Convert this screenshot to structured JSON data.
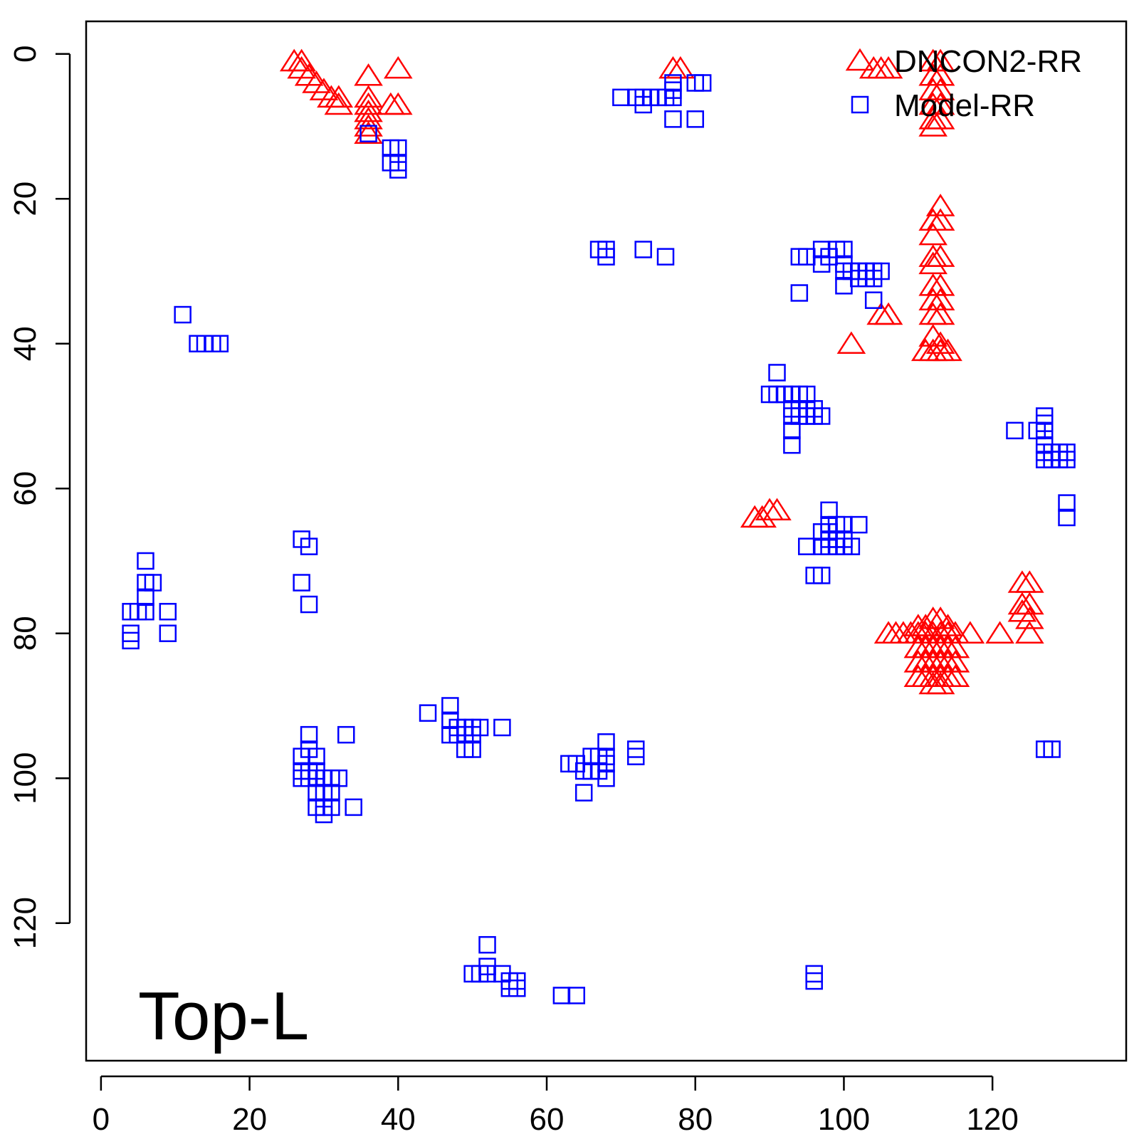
{
  "chart_data": {
    "type": "scatter",
    "title": "",
    "xlabel": "",
    "ylabel": "",
    "xlim": [
      -2,
      138
    ],
    "ylim": [
      139,
      -4.5
    ],
    "x_ticks": [
      0,
      20,
      40,
      60,
      80,
      100,
      120
    ],
    "y_ticks": [
      0,
      20,
      40,
      60,
      80,
      100,
      120
    ],
    "panel_label": "Top-L",
    "grid": false,
    "legend_position": "top-right",
    "series": [
      {
        "name": "DNCON2-RR",
        "marker": "triangle",
        "color": "#ff0000",
        "points": [
          [
            26,
            1
          ],
          [
            27,
            1
          ],
          [
            27,
            2
          ],
          [
            28,
            3
          ],
          [
            29,
            4
          ],
          [
            30,
            5
          ],
          [
            31,
            6
          ],
          [
            32,
            6
          ],
          [
            32,
            7
          ],
          [
            36,
            3
          ],
          [
            36,
            6
          ],
          [
            36,
            7
          ],
          [
            36,
            8
          ],
          [
            36,
            9
          ],
          [
            36,
            10
          ],
          [
            36,
            11
          ],
          [
            39,
            7
          ],
          [
            40,
            7
          ],
          [
            40,
            2
          ],
          [
            77,
            2
          ],
          [
            78,
            2
          ],
          [
            104,
            2
          ],
          [
            105,
            2
          ],
          [
            106,
            2
          ],
          [
            112,
            1
          ],
          [
            113,
            1
          ],
          [
            112,
            3
          ],
          [
            113,
            3
          ],
          [
            112,
            5
          ],
          [
            113,
            5
          ],
          [
            112,
            7
          ],
          [
            113,
            7
          ],
          [
            112,
            9
          ],
          [
            113,
            9
          ],
          [
            112,
            10
          ],
          [
            113,
            21
          ],
          [
            112,
            23
          ],
          [
            113,
            23
          ],
          [
            112,
            25
          ],
          [
            112,
            28
          ],
          [
            113,
            28
          ],
          [
            112,
            29
          ],
          [
            112,
            32
          ],
          [
            113,
            32
          ],
          [
            112,
            34
          ],
          [
            113,
            34
          ],
          [
            112,
            36
          ],
          [
            113,
            36
          ],
          [
            112,
            39
          ],
          [
            113,
            40
          ],
          [
            111,
            41
          ],
          [
            112,
            41
          ],
          [
            113,
            41
          ],
          [
            114,
            41
          ],
          [
            105,
            36
          ],
          [
            106,
            36
          ],
          [
            101,
            40
          ],
          [
            88,
            64
          ],
          [
            89,
            64
          ],
          [
            90,
            63
          ],
          [
            91,
            63
          ],
          [
            124,
            73
          ],
          [
            125,
            73
          ],
          [
            124,
            76
          ],
          [
            125,
            76
          ],
          [
            124,
            77
          ],
          [
            125,
            78
          ],
          [
            125,
            80
          ],
          [
            121,
            80
          ],
          [
            106,
            80
          ],
          [
            107,
            80
          ],
          [
            108,
            80
          ],
          [
            109,
            80
          ],
          [
            110,
            80
          ],
          [
            111,
            80
          ],
          [
            112,
            80
          ],
          [
            113,
            80
          ],
          [
            114,
            80
          ],
          [
            115,
            80
          ],
          [
            117,
            80
          ],
          [
            110,
            79
          ],
          [
            111,
            79
          ],
          [
            112,
            78
          ],
          [
            113,
            78
          ],
          [
            114,
            79
          ],
          [
            110,
            82
          ],
          [
            111,
            82
          ],
          [
            112,
            82
          ],
          [
            113,
            82
          ],
          [
            114,
            82
          ],
          [
            115,
            82
          ],
          [
            110,
            84
          ],
          [
            111,
            84
          ],
          [
            112,
            84
          ],
          [
            113,
            84
          ],
          [
            114,
            84
          ],
          [
            115,
            84
          ],
          [
            110,
            86
          ],
          [
            111,
            86
          ],
          [
            112,
            86
          ],
          [
            113,
            86
          ],
          [
            114,
            86
          ],
          [
            115,
            86
          ],
          [
            112,
            87
          ],
          [
            113,
            87
          ]
        ]
      },
      {
        "name": "Model-RR",
        "marker": "square",
        "color": "#0000ff",
        "points": [
          [
            11,
            36
          ],
          [
            13,
            40
          ],
          [
            14,
            40
          ],
          [
            15,
            40
          ],
          [
            16,
            40
          ],
          [
            4,
            77
          ],
          [
            5,
            77
          ],
          [
            4,
            80
          ],
          [
            4,
            81
          ],
          [
            6,
            70
          ],
          [
            6,
            73
          ],
          [
            7,
            73
          ],
          [
            6,
            75
          ],
          [
            6,
            77
          ],
          [
            9,
            77
          ],
          [
            9,
            80
          ],
          [
            27,
            67
          ],
          [
            28,
            68
          ],
          [
            27,
            73
          ],
          [
            28,
            76
          ],
          [
            28,
            94
          ],
          [
            28,
            96
          ],
          [
            27,
            97
          ],
          [
            29,
            97
          ],
          [
            27,
            99
          ],
          [
            28,
            99
          ],
          [
            29,
            99
          ],
          [
            27,
            100
          ],
          [
            28,
            100
          ],
          [
            29,
            100
          ],
          [
            30,
            100
          ],
          [
            31,
            100
          ],
          [
            32,
            100
          ],
          [
            33,
            94
          ],
          [
            29,
            102
          ],
          [
            30,
            102
          ],
          [
            31,
            102
          ],
          [
            29,
            104
          ],
          [
            30,
            104
          ],
          [
            31,
            104
          ],
          [
            34,
            104
          ],
          [
            30,
            105
          ],
          [
            39,
            13
          ],
          [
            40,
            13
          ],
          [
            39,
            15
          ],
          [
            40,
            15
          ],
          [
            40,
            16
          ],
          [
            36,
            11
          ],
          [
            44,
            91
          ],
          [
            47,
            90
          ],
          [
            47,
            92
          ],
          [
            48,
            93
          ],
          [
            49,
            93
          ],
          [
            50,
            93
          ],
          [
            47,
            94
          ],
          [
            48,
            94
          ],
          [
            49,
            94
          ],
          [
            50,
            94
          ],
          [
            51,
            93
          ],
          [
            54,
            93
          ],
          [
            49,
            96
          ],
          [
            50,
            96
          ],
          [
            63,
            98
          ],
          [
            64,
            98
          ],
          [
            65,
            99
          ],
          [
            66,
            99
          ],
          [
            67,
            99
          ],
          [
            66,
            97
          ],
          [
            67,
            97
          ],
          [
            68,
            97
          ],
          [
            68,
            98
          ],
          [
            68,
            95
          ],
          [
            65,
            102
          ],
          [
            68,
            100
          ],
          [
            72,
            96
          ],
          [
            72,
            97
          ],
          [
            52,
            123
          ],
          [
            50,
            127
          ],
          [
            51,
            127
          ],
          [
            52,
            126
          ],
          [
            52,
            127
          ],
          [
            54,
            127
          ],
          [
            55,
            128
          ],
          [
            56,
            128
          ],
          [
            55,
            129
          ],
          [
            56,
            129
          ],
          [
            62,
            130
          ],
          [
            64,
            130
          ],
          [
            67,
            27
          ],
          [
            68,
            27
          ],
          [
            68,
            28
          ],
          [
            73,
            27
          ],
          [
            76,
            28
          ],
          [
            70,
            6
          ],
          [
            72,
            6
          ],
          [
            73,
            6
          ],
          [
            73,
            7
          ],
          [
            74,
            6
          ],
          [
            75,
            6
          ],
          [
            76,
            6
          ],
          [
            77,
            6
          ],
          [
            77,
            5
          ],
          [
            77,
            4
          ],
          [
            80,
            4
          ],
          [
            81,
            4
          ],
          [
            77,
            9
          ],
          [
            80,
            9
          ],
          [
            94,
            28
          ],
          [
            95,
            28
          ],
          [
            97,
            27
          ],
          [
            98,
            28
          ],
          [
            97,
            29
          ],
          [
            99,
            27
          ],
          [
            100,
            27
          ],
          [
            100,
            29
          ],
          [
            100,
            30
          ],
          [
            101,
            30
          ],
          [
            100,
            32
          ],
          [
            102,
            30
          ],
          [
            103,
            30
          ],
          [
            104,
            30
          ],
          [
            105,
            30
          ],
          [
            102,
            31
          ],
          [
            103,
            31
          ],
          [
            104,
            31
          ],
          [
            94,
            33
          ],
          [
            104,
            34
          ],
          [
            91,
            44
          ],
          [
            90,
            47
          ],
          [
            91,
            47
          ],
          [
            92,
            47
          ],
          [
            93,
            47
          ],
          [
            94,
            47
          ],
          [
            95,
            47
          ],
          [
            93,
            49
          ],
          [
            94,
            49
          ],
          [
            95,
            49
          ],
          [
            93,
            50
          ],
          [
            94,
            50
          ],
          [
            95,
            50
          ],
          [
            96,
            50
          ],
          [
            97,
            50
          ],
          [
            96,
            49
          ],
          [
            93,
            52
          ],
          [
            93,
            54
          ],
          [
            98,
            63
          ],
          [
            98,
            65
          ],
          [
            99,
            65
          ],
          [
            100,
            65
          ],
          [
            97,
            66
          ],
          [
            98,
            66
          ],
          [
            99,
            67
          ],
          [
            98,
            67
          ],
          [
            100,
            67
          ],
          [
            95,
            68
          ],
          [
            97,
            68
          ],
          [
            98,
            68
          ],
          [
            99,
            68
          ],
          [
            100,
            68
          ],
          [
            101,
            68
          ],
          [
            102,
            65
          ],
          [
            96,
            72
          ],
          [
            97,
            72
          ],
          [
            96,
            127
          ],
          [
            96,
            128
          ],
          [
            123,
            52
          ],
          [
            126,
            52
          ],
          [
            127,
            50
          ],
          [
            127,
            51
          ],
          [
            127,
            52
          ],
          [
            127,
            54
          ],
          [
            127,
            55
          ],
          [
            128,
            55
          ],
          [
            129,
            55
          ],
          [
            130,
            55
          ],
          [
            127,
            56
          ],
          [
            128,
            56
          ],
          [
            129,
            56
          ],
          [
            130,
            56
          ],
          [
            130,
            62
          ],
          [
            130,
            64
          ],
          [
            127,
            96
          ],
          [
            128,
            96
          ]
        ]
      }
    ]
  }
}
